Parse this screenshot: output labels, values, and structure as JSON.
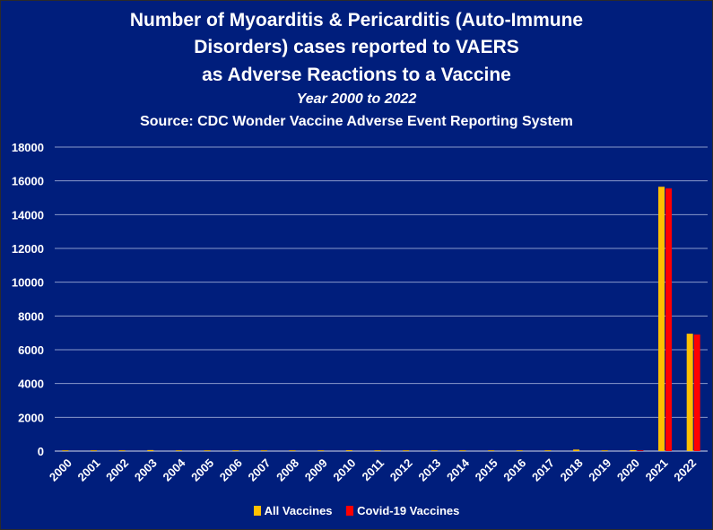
{
  "colors": {
    "background": "#001e7c",
    "gridline": "#b8c2e6",
    "axis": "#d7dcef",
    "all_vaccines": "#ffc000",
    "covid_vaccines": "#ff0000"
  },
  "chart_data": {
    "type": "bar",
    "title_lines": [
      "Number of Myoarditis & Pericarditis (Auto-Immune",
      "Disorders) cases reported to VAERS",
      "as Adverse Reactions to a Vaccine"
    ],
    "subtitle": "Year 2000 to 2022",
    "source": "Source: CDC Wonder Vaccine Adverse Event Reporting System",
    "xlabel": "",
    "ylabel": "",
    "ylim": [
      0,
      18000
    ],
    "yticks": [
      "0",
      "2000",
      "4000",
      "6000",
      "8000",
      "10000",
      "12000",
      "14000",
      "16000",
      "18000"
    ],
    "grid": true,
    "legend_position": "bottom",
    "categories": [
      "2000",
      "2001",
      "2002",
      "2003",
      "2004",
      "2005",
      "2006",
      "2007",
      "2008",
      "2009",
      "2010",
      "2011",
      "2012",
      "2013",
      "2014",
      "2015",
      "2016",
      "2017",
      "2018",
      "2019",
      "2020",
      "2021",
      "2022"
    ],
    "series": [
      {
        "name": "All Vaccines",
        "color": "#ffc000",
        "values": [
          20,
          15,
          25,
          60,
          25,
          20,
          30,
          25,
          30,
          35,
          50,
          45,
          40,
          40,
          35,
          30,
          35,
          45,
          90,
          40,
          55,
          15650,
          6950
        ]
      },
      {
        "name": "Covid-19 Vaccines",
        "color": "#ff0000",
        "values": [
          0,
          0,
          0,
          0,
          0,
          0,
          0,
          0,
          0,
          0,
          0,
          0,
          0,
          0,
          0,
          0,
          0,
          0,
          0,
          0,
          10,
          15550,
          6900
        ]
      }
    ]
  }
}
